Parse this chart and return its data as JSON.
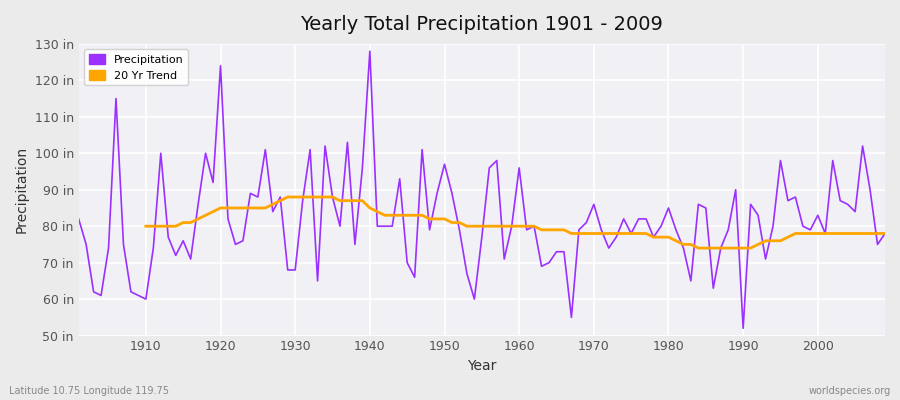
{
  "title": "Yearly Total Precipitation 1901 - 2009",
  "xlabel": "Year",
  "ylabel": "Precipitation",
  "subtitle_left": "Latitude 10.75 Longitude 119.75",
  "subtitle_right": "worldspecies.org",
  "ylim": [
    50,
    130
  ],
  "xlim": [
    1901,
    2009
  ],
  "yticks": [
    50,
    60,
    70,
    80,
    90,
    100,
    110,
    120,
    130
  ],
  "ytick_labels": [
    "50 in",
    "60 in",
    "70 in",
    "80 in",
    "90 in",
    "100 in",
    "110 in",
    "120 in",
    "130 in"
  ],
  "xticks": [
    1910,
    1920,
    1930,
    1940,
    1950,
    1960,
    1970,
    1980,
    1990,
    2000
  ],
  "precip_color": "#9B30FF",
  "trend_color": "#FFA500",
  "background_color": "#EBEBEB",
  "plot_bg_color": "#F0F0F5",
  "grid_color": "#FFFFFF",
  "precip_label": "Precipitation",
  "trend_label": "20 Yr Trend",
  "years": [
    1901,
    1902,
    1903,
    1904,
    1905,
    1906,
    1907,
    1908,
    1909,
    1910,
    1911,
    1912,
    1913,
    1914,
    1915,
    1916,
    1917,
    1918,
    1919,
    1920,
    1921,
    1922,
    1923,
    1924,
    1925,
    1926,
    1927,
    1928,
    1929,
    1930,
    1931,
    1932,
    1933,
    1934,
    1935,
    1936,
    1937,
    1938,
    1939,
    1940,
    1941,
    1942,
    1943,
    1944,
    1945,
    1946,
    1947,
    1948,
    1949,
    1950,
    1951,
    1952,
    1953,
    1954,
    1955,
    1956,
    1957,
    1958,
    1959,
    1960,
    1961,
    1962,
    1963,
    1964,
    1965,
    1966,
    1967,
    1968,
    1969,
    1970,
    1971,
    1972,
    1973,
    1974,
    1975,
    1976,
    1977,
    1978,
    1979,
    1980,
    1981,
    1982,
    1983,
    1984,
    1985,
    1986,
    1987,
    1988,
    1989,
    1990,
    1991,
    1992,
    1993,
    1994,
    1995,
    1996,
    1997,
    1998,
    1999,
    2000,
    2001,
    2002,
    2003,
    2004,
    2005,
    2006,
    2007,
    2008,
    2009
  ],
  "precip": [
    82,
    75,
    62,
    61,
    74,
    115,
    75,
    62,
    61,
    60,
    74,
    100,
    77,
    72,
    76,
    71,
    86,
    100,
    92,
    124,
    82,
    75,
    76,
    89,
    88,
    101,
    84,
    88,
    68,
    68,
    87,
    101,
    65,
    102,
    88,
    80,
    103,
    75,
    96,
    128,
    80,
    80,
    80,
    93,
    70,
    66,
    101,
    79,
    89,
    97,
    89,
    79,
    67,
    60,
    77,
    96,
    98,
    71,
    80,
    96,
    79,
    80,
    69,
    70,
    73,
    73,
    55,
    79,
    81,
    86,
    79,
    74,
    77,
    82,
    78,
    82,
    82,
    77,
    80,
    85,
    79,
    74,
    65,
    86,
    85,
    63,
    74,
    79,
    90,
    52,
    86,
    83,
    71,
    80,
    98,
    87,
    88,
    80,
    79,
    83,
    78,
    98,
    87,
    86,
    84,
    102,
    90,
    75,
    78
  ],
  "trend": [
    null,
    null,
    null,
    null,
    null,
    null,
    null,
    null,
    null,
    80,
    80,
    80,
    80,
    80,
    81,
    81,
    82,
    83,
    84,
    85,
    85,
    85,
    85,
    85,
    85,
    85,
    86,
    87,
    88,
    88,
    88,
    88,
    88,
    88,
    88,
    87,
    87,
    87,
    87,
    85,
    84,
    83,
    83,
    83,
    83,
    83,
    83,
    82,
    82,
    82,
    81,
    81,
    80,
    80,
    80,
    80,
    80,
    80,
    80,
    80,
    80,
    80,
    79,
    79,
    79,
    79,
    78,
    78,
    78,
    78,
    78,
    78,
    78,
    78,
    78,
    78,
    78,
    77,
    77,
    77,
    76,
    75,
    75,
    74,
    74,
    74,
    74,
    74,
    74,
    74,
    74,
    75,
    76,
    76,
    76,
    77,
    78,
    78,
    78,
    78,
    78,
    78,
    78,
    78,
    78,
    78,
    78,
    78,
    78,
    78
  ]
}
